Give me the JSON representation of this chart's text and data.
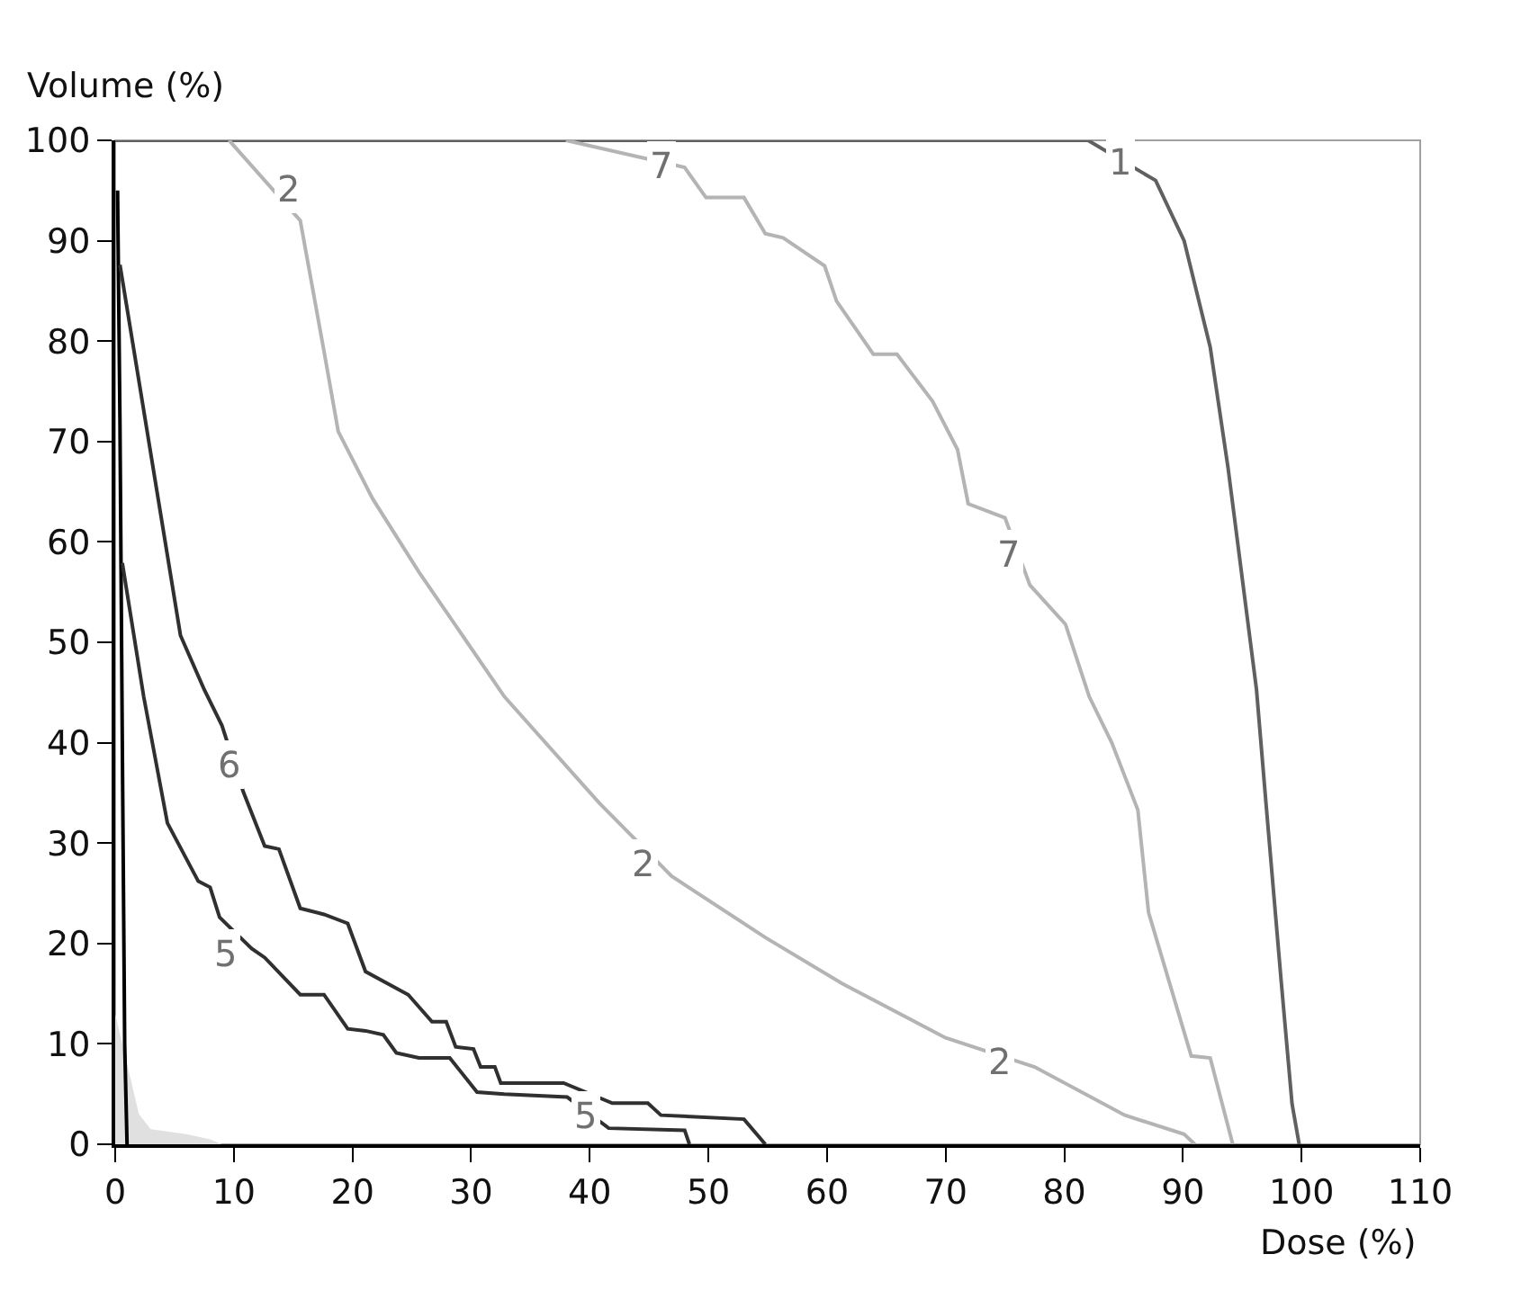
{
  "chart_data": {
    "type": "line",
    "xlabel": "Dose (%)",
    "ylabel": "Volume (%)",
    "xlim": [
      0,
      110
    ],
    "xticks": [
      0,
      10,
      20,
      30,
      40,
      50,
      60,
      70,
      80,
      90,
      100,
      110
    ],
    "ylim": [
      0,
      100
    ],
    "yticks": [
      0,
      10,
      20,
      30,
      40,
      50,
      60,
      70,
      80,
      90,
      100
    ],
    "grid": false,
    "marker": "none",
    "line_style": "solid",
    "series": [
      {
        "type": "area",
        "color": "#e0e0e0",
        "x": [
          0,
          1,
          2,
          3,
          6,
          8,
          9
        ],
        "values": [
          13,
          8,
          3,
          1.5,
          1,
          0.5,
          0
        ]
      },
      {
        "color": "#000000",
        "x": [
          0.2,
          0.4,
          0.6,
          0.8,
          1
        ],
        "values": [
          95,
          72,
          40,
          10,
          0
        ]
      },
      {
        "color": "#606060",
        "x": [
          0,
          82,
          87.7,
          90.1,
          92.3,
          93.8,
          96.2,
          97,
          98.3,
          99.2,
          99.8
        ],
        "values": [
          100,
          100,
          96,
          90,
          79.4,
          67.4,
          45.3,
          34,
          16,
          4,
          0
        ]
      },
      {
        "color": "#b4b4b4",
        "x": [
          9.6,
          15.6,
          17.6,
          18.8,
          21.7,
          25.6,
          32.8,
          40.8,
          46.9,
          54.8,
          61.3,
          70,
          77.5,
          85.1,
          90.1,
          91
        ],
        "values": [
          100,
          92,
          79,
          71,
          64.3,
          57,
          44.6,
          34,
          26.7,
          20.6,
          16,
          10.6,
          7.7,
          2.9,
          1,
          0
        ]
      },
      {
        "color": "#b4b4b4",
        "x": [
          38,
          48,
          49.8,
          53,
          54.8,
          56.3,
          59.8,
          60.8,
          63.9,
          65.9,
          68.9,
          71,
          71.9,
          75,
          77.1,
          80.1,
          82.1,
          84,
          86.2,
          87.1,
          90.7,
          92.3,
          94.2
        ],
        "values": [
          100,
          97.3,
          94.3,
          94.3,
          90.7,
          90.3,
          87.5,
          84,
          78.7,
          78.7,
          74,
          69.2,
          63.8,
          62.4,
          55.7,
          51.8,
          44.6,
          40,
          33.3,
          23.1,
          8.8,
          8.6,
          0
        ]
      },
      {
        "color": "#303030",
        "x": [
          0.4,
          5.5,
          7.5,
          9,
          10.8,
          12.6,
          13.8,
          15.6,
          17.6,
          19.6,
          21.1,
          24.7,
          26.7,
          27.9,
          28.7,
          30.2,
          30.8,
          32,
          32.5,
          37.8,
          41.9,
          44.9,
          46,
          53,
          54.8
        ],
        "values": [
          87.6,
          50.7,
          45.3,
          41.7,
          35.1,
          29.7,
          29.4,
          23.5,
          22.9,
          22,
          17.2,
          14.9,
          12.2,
          12.2,
          9.7,
          9.5,
          7.7,
          7.7,
          6.1,
          6.1,
          4.1,
          4.1,
          2.9,
          2.5,
          0
        ]
      },
      {
        "color": "#303030",
        "x": [
          0.6,
          2.4,
          4.4,
          7,
          8,
          8.8,
          11.5,
          12.6,
          15.6,
          17.6,
          19.6,
          21.1,
          22.6,
          23.7,
          25.6,
          28.2,
          30.5,
          32.8,
          38.1,
          41.6,
          48,
          48.4
        ],
        "values": [
          57.9,
          44.6,
          32,
          26.2,
          25.6,
          22.6,
          19.5,
          18.6,
          14.9,
          14.9,
          11.5,
          11.3,
          10.9,
          9.1,
          8.6,
          8.6,
          5.2,
          5,
          4.7,
          1.6,
          1.4,
          0
        ]
      }
    ],
    "annotations": [
      {
        "text": "1",
        "x": 84.7,
        "y": 97.8
      },
      {
        "text": "2",
        "x": 14.6,
        "y": 95.2
      },
      {
        "text": "2",
        "x": 44.5,
        "y": 28
      },
      {
        "text": "2",
        "x": 74.5,
        "y": 8.2
      },
      {
        "text": "7",
        "x": 46.1,
        "y": 97.5
      },
      {
        "text": "7",
        "x": 75.3,
        "y": 58.8
      },
      {
        "text": "6",
        "x": 9.6,
        "y": 37.8
      },
      {
        "text": "5",
        "x": 9.3,
        "y": 19
      },
      {
        "text": "5",
        "x": 39.6,
        "y": 2.9
      }
    ]
  }
}
